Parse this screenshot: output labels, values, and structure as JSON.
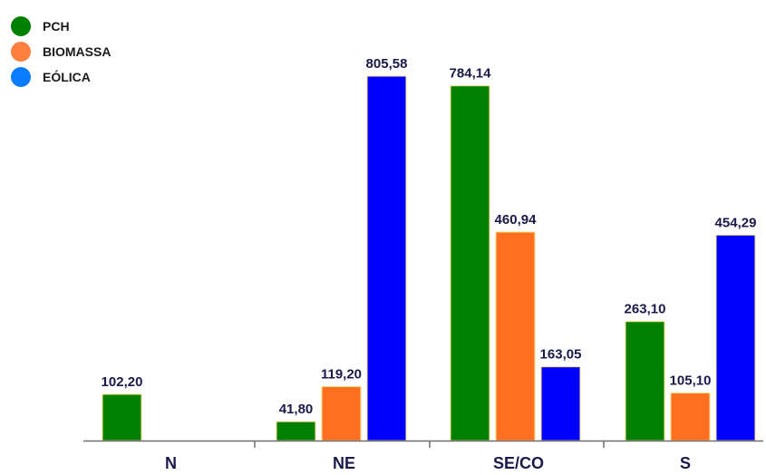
{
  "chart_data": {
    "type": "bar",
    "title": "",
    "xlabel": "",
    "ylabel": "",
    "categories": [
      "N",
      "NE",
      "SE/CO",
      "S"
    ],
    "series": [
      {
        "name": "PCH",
        "color": "#008000",
        "values": [
          102.2,
          41.8,
          784.14,
          263.1
        ],
        "labels": [
          "102,20",
          "41,80",
          "784,14",
          "263,10"
        ]
      },
      {
        "name": "BIOMASSA",
        "color": "#FF6F1F",
        "values": [
          null,
          119.2,
          460.94,
          105.1
        ],
        "labels": [
          null,
          "119,20",
          "460,94",
          "105,10"
        ]
      },
      {
        "name": "EÓLICA",
        "color": "#0000FF",
        "values": [
          null,
          805.58,
          163.05,
          454.29
        ],
        "labels": [
          null,
          "805,58",
          "163,05",
          "454,29"
        ]
      }
    ],
    "ylim": [
      0,
      805.58
    ],
    "grid": false,
    "legend_position": "top-left",
    "legend_marker_colors": [
      "#008000",
      "#FF7F3F",
      "#0A7CFF"
    ],
    "bar_border_color": "#FFE080",
    "value_label_color": "#1A1A4A"
  }
}
